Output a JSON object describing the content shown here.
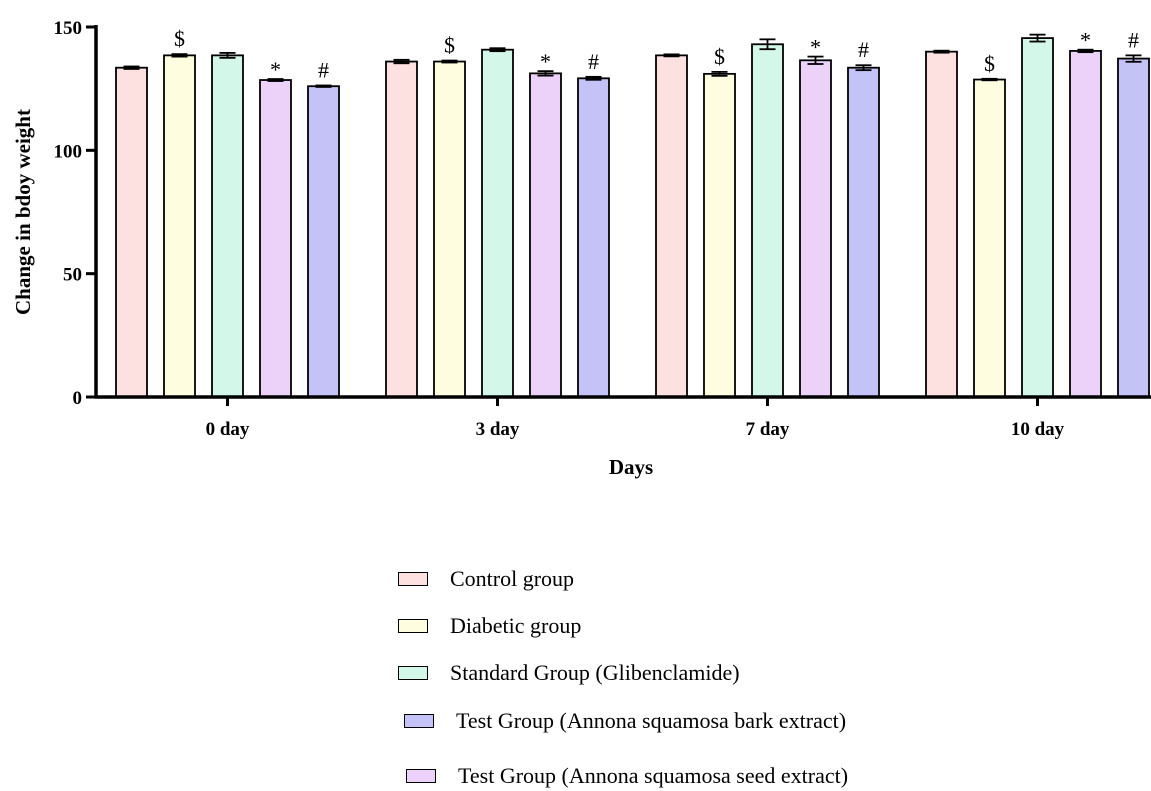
{
  "chart_data": {
    "type": "bar",
    "xlabel": "Days",
    "ylabel": "Change in bdoy weight",
    "ylim": [
      0,
      150
    ],
    "yticks": [
      0,
      50,
      100,
      150
    ],
    "categories": [
      "0 day",
      "3 day",
      "7 day",
      "10 day"
    ],
    "series": [
      {
        "color": "#fde0e0",
        "values": [
          133.5,
          136,
          138.5,
          140
        ],
        "errors": [
          0.5,
          0.7,
          0.4,
          0.4
        ],
        "marks": [
          "",
          "",
          "",
          ""
        ]
      },
      {
        "color": "#fffde0",
        "values": [
          138.5,
          136,
          131,
          128.7
        ],
        "errors": [
          0.5,
          0.4,
          0.8,
          0.3
        ],
        "marks": [
          "$",
          "$",
          "$",
          "$"
        ]
      },
      {
        "color": "#d3f7e8",
        "values": [
          138.5,
          140.8,
          143,
          145.5
        ],
        "errors": [
          1.0,
          0.6,
          2.0,
          1.4
        ],
        "marks": [
          "",
          "",
          "",
          ""
        ]
      },
      {
        "color": "#ecd2f8",
        "values": [
          128.5,
          131.2,
          136.5,
          140.3
        ],
        "errors": [
          0.4,
          0.9,
          1.5,
          0.5
        ],
        "marks": [
          "*",
          "*",
          "*",
          "*"
        ]
      },
      {
        "color": "#c3c3f8",
        "values": [
          126,
          129.2,
          133.5,
          137.2
        ],
        "errors": [
          0.3,
          0.6,
          1.0,
          1.3
        ],
        "marks": [
          "#",
          "#",
          "#",
          "#"
        ]
      }
    ],
    "legend": [
      {
        "label": "Control group",
        "color": "#fde0e0"
      },
      {
        "label": "Diabetic group",
        "color": "#fffde0"
      },
      {
        "label": "Standard Group (Glibenclamide)",
        "color": "#d3f7e8"
      },
      {
        "label": "Test Group (Annona squamosa bark extract)",
        "color": "#c3c3f8"
      },
      {
        "label": "Test Group (Annona squamosa seed extract)",
        "color": "#ecd2f8"
      }
    ],
    "legend_position": "bottom-center",
    "grid": false
  }
}
